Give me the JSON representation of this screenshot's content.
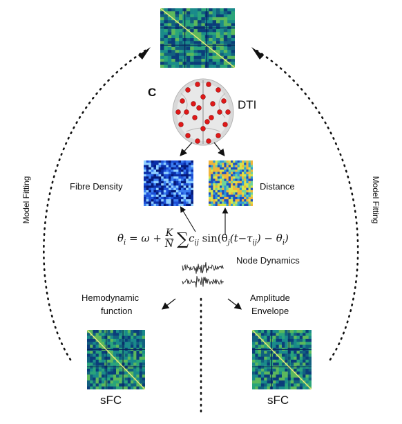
{
  "panel_letter": "C",
  "labels": {
    "dti": "DTI",
    "fibre_density": "Fibre Density",
    "distance": "Distance",
    "node_dynamics": "Node Dynamics",
    "hemodynamic_line1": "Hemodynamic",
    "hemodynamic_line2": "function",
    "amplitude_line1": "Amplitude",
    "amplitude_line2": "Envelope",
    "sfc_left": "sFC",
    "sfc_right": "sFC",
    "model_fitting_left": "Model Fitting",
    "model_fitting_right": "Model Fitting"
  },
  "equation": {
    "lhs": "θ̇",
    "sub_i": "i",
    "omega": "= ω +",
    "K": "K",
    "N": "N",
    "sum": "∑",
    "c": "c",
    "ij": "ij",
    "sin_open": "sin(θ",
    "j": "j",
    "t_open": "(t−τ",
    "close": ") − θ",
    "end": ")"
  },
  "colors": {
    "sfc_palette": [
      "#0b3d7a",
      "#12607f",
      "#1a8a8a",
      "#2aa47a",
      "#5cb85c"
    ],
    "fibre_palette": [
      "#051a7a",
      "#0a2ea8",
      "#1b4fd6",
      "#3a7cf0",
      "#8fd0ff"
    ],
    "distance_palette": [
      "#1f4fbf",
      "#2e9bd6",
      "#6fd39a",
      "#d8e34a",
      "#f0b53a"
    ],
    "dot_color": "#111111",
    "node_color": "#e01818"
  }
}
